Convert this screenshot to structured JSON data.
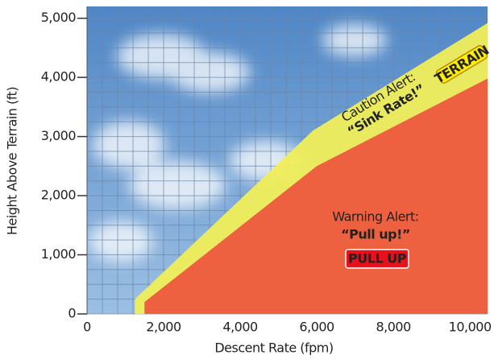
{
  "chart_data": {
    "type": "area",
    "xlabel": "Descent Rate (fpm)",
    "ylabel": "Height Above Terrain (ft)",
    "xlim": [
      0,
      10460
    ],
    "ylim": [
      0,
      5200
    ],
    "xticks": [
      0,
      {
        "value": 2000,
        "label": "2,000"
      },
      {
        "value": 4000,
        "label": "4,000"
      },
      {
        "value": 6000,
        "label": "6,000"
      },
      {
        "value": 8000,
        "label": "8,000"
      },
      {
        "value": 10000,
        "label": "10,000"
      }
    ],
    "yticks": [
      0,
      {
        "value": 1000,
        "label": "1,000"
      },
      {
        "value": 2000,
        "label": "2,000"
      },
      {
        "value": 3000,
        "label": "3,000"
      },
      {
        "value": 4000,
        "label": "4,000"
      },
      {
        "value": 5000,
        "label": "5,000"
      }
    ],
    "grid": true,
    "x_grid_step": 400,
    "y_grid_step": 250,
    "series": [
      {
        "name": "Caution Alert:",
        "color": "#f0ee5a",
        "x": [
          1250,
          1250,
          5900,
          10460
        ],
        "values": [
          0,
          250,
          3100,
          4920
        ]
      },
      {
        "name": "Warning Alert:",
        "color": "#ee5a3e",
        "x": [
          1500,
          1500,
          6000,
          10460
        ],
        "values": [
          0,
          200,
          2500,
          3980
        ]
      }
    ],
    "annotations": {
      "caution_line1": "Caution Alert:",
      "caution_line2": "“Sink Rate!”",
      "caution_badge": "TERRAIN",
      "warning_line1": "Warning Alert:",
      "warning_line2": "“Pull up!”",
      "warning_badge": "PULL UP"
    }
  }
}
